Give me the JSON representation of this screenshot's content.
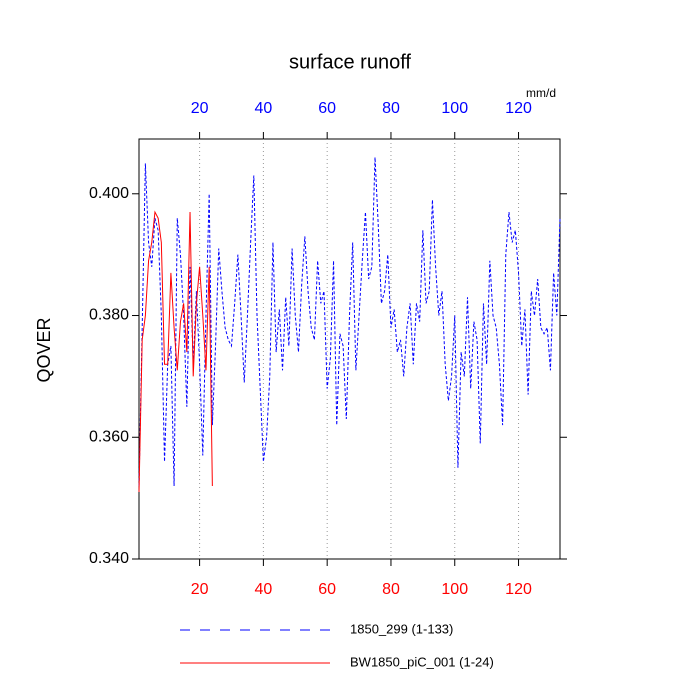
{
  "chart_data": {
    "type": "line",
    "title": "surface runoff",
    "y_label": "QOVER",
    "x2_units": "mm/d",
    "xlim": [
      1,
      133
    ],
    "ylim": [
      0.34,
      0.409
    ],
    "xticks": [
      20,
      40,
      60,
      80,
      100,
      120
    ],
    "x2ticks": [
      20,
      40,
      60,
      80,
      100,
      120
    ],
    "xtick_color": "red",
    "x2tick_color": "blue",
    "yticks": [
      {
        "value": 0.34,
        "label": "0.340"
      },
      {
        "value": 0.36,
        "label": "0.360"
      },
      {
        "value": 0.38,
        "label": "0.380"
      },
      {
        "value": 0.4,
        "label": "0.400"
      }
    ],
    "grid": true,
    "legend": "bottom",
    "series": [
      {
        "name": "1850_299 (1-133)",
        "color": "blue",
        "line_style": "dashed",
        "x": [
          1,
          2,
          3,
          4,
          5,
          6,
          7,
          8,
          9,
          10,
          11,
          12,
          13,
          14,
          15,
          16,
          17,
          18,
          19,
          20,
          21,
          22,
          23,
          24,
          25,
          26,
          27,
          28,
          29,
          30,
          31,
          32,
          33,
          34,
          35,
          36,
          37,
          38,
          39,
          40,
          41,
          42,
          43,
          44,
          45,
          46,
          47,
          48,
          49,
          50,
          51,
          52,
          53,
          54,
          55,
          56,
          57,
          58,
          59,
          60,
          61,
          62,
          63,
          64,
          65,
          66,
          67,
          68,
          69,
          70,
          71,
          72,
          73,
          74,
          75,
          76,
          77,
          78,
          79,
          80,
          81,
          82,
          83,
          84,
          85,
          86,
          87,
          88,
          89,
          90,
          91,
          92,
          93,
          94,
          95,
          96,
          97,
          98,
          99,
          100,
          101,
          102,
          103,
          104,
          105,
          106,
          107,
          108,
          109,
          110,
          111,
          112,
          113,
          114,
          115,
          116,
          117,
          118,
          119,
          120,
          121,
          122,
          123,
          124,
          125,
          126,
          127,
          128,
          129,
          130,
          131,
          132,
          133
        ],
        "values": [
          0.352,
          0.378,
          0.405,
          0.392,
          0.388,
          0.396,
          0.394,
          0.38,
          0.356,
          0.372,
          0.375,
          0.352,
          0.396,
          0.39,
          0.38,
          0.365,
          0.388,
          0.372,
          0.384,
          0.372,
          0.357,
          0.38,
          0.4,
          0.362,
          0.375,
          0.391,
          0.384,
          0.378,
          0.376,
          0.375,
          0.382,
          0.39,
          0.38,
          0.369,
          0.38,
          0.392,
          0.403,
          0.38,
          0.368,
          0.356,
          0.36,
          0.37,
          0.392,
          0.374,
          0.381,
          0.371,
          0.383,
          0.375,
          0.391,
          0.38,
          0.374,
          0.385,
          0.393,
          0.384,
          0.378,
          0.376,
          0.389,
          0.382,
          0.384,
          0.368,
          0.373,
          0.389,
          0.362,
          0.377,
          0.375,
          0.363,
          0.38,
          0.392,
          0.371,
          0.38,
          0.389,
          0.397,
          0.386,
          0.388,
          0.406,
          0.395,
          0.382,
          0.384,
          0.39,
          0.378,
          0.381,
          0.374,
          0.376,
          0.37,
          0.378,
          0.382,
          0.372,
          0.382,
          0.379,
          0.394,
          0.382,
          0.384,
          0.399,
          0.388,
          0.38,
          0.384,
          0.372,
          0.366,
          0.37,
          0.38,
          0.355,
          0.374,
          0.37,
          0.383,
          0.368,
          0.379,
          0.376,
          0.359,
          0.382,
          0.372,
          0.389,
          0.38,
          0.378,
          0.372,
          0.362,
          0.39,
          0.397,
          0.392,
          0.394,
          0.387,
          0.375,
          0.381,
          0.367,
          0.384,
          0.38,
          0.386,
          0.378,
          0.377,
          0.378,
          0.371,
          0.387,
          0.38,
          0.396
        ]
      },
      {
        "name": "BW1850_piC_001 (1-24)",
        "color": "red",
        "line_style": "solid",
        "x": [
          1,
          2,
          3,
          4,
          5,
          6,
          7,
          8,
          9,
          10,
          11,
          12,
          13,
          14,
          15,
          16,
          17,
          18,
          19,
          20,
          21,
          22,
          23,
          24
        ],
        "values": [
          0.351,
          0.376,
          0.38,
          0.389,
          0.392,
          0.397,
          0.396,
          0.392,
          0.372,
          0.372,
          0.387,
          0.378,
          0.371,
          0.379,
          0.382,
          0.374,
          0.397,
          0.37,
          0.382,
          0.388,
          0.38,
          0.371,
          0.388,
          0.352
        ]
      }
    ]
  }
}
